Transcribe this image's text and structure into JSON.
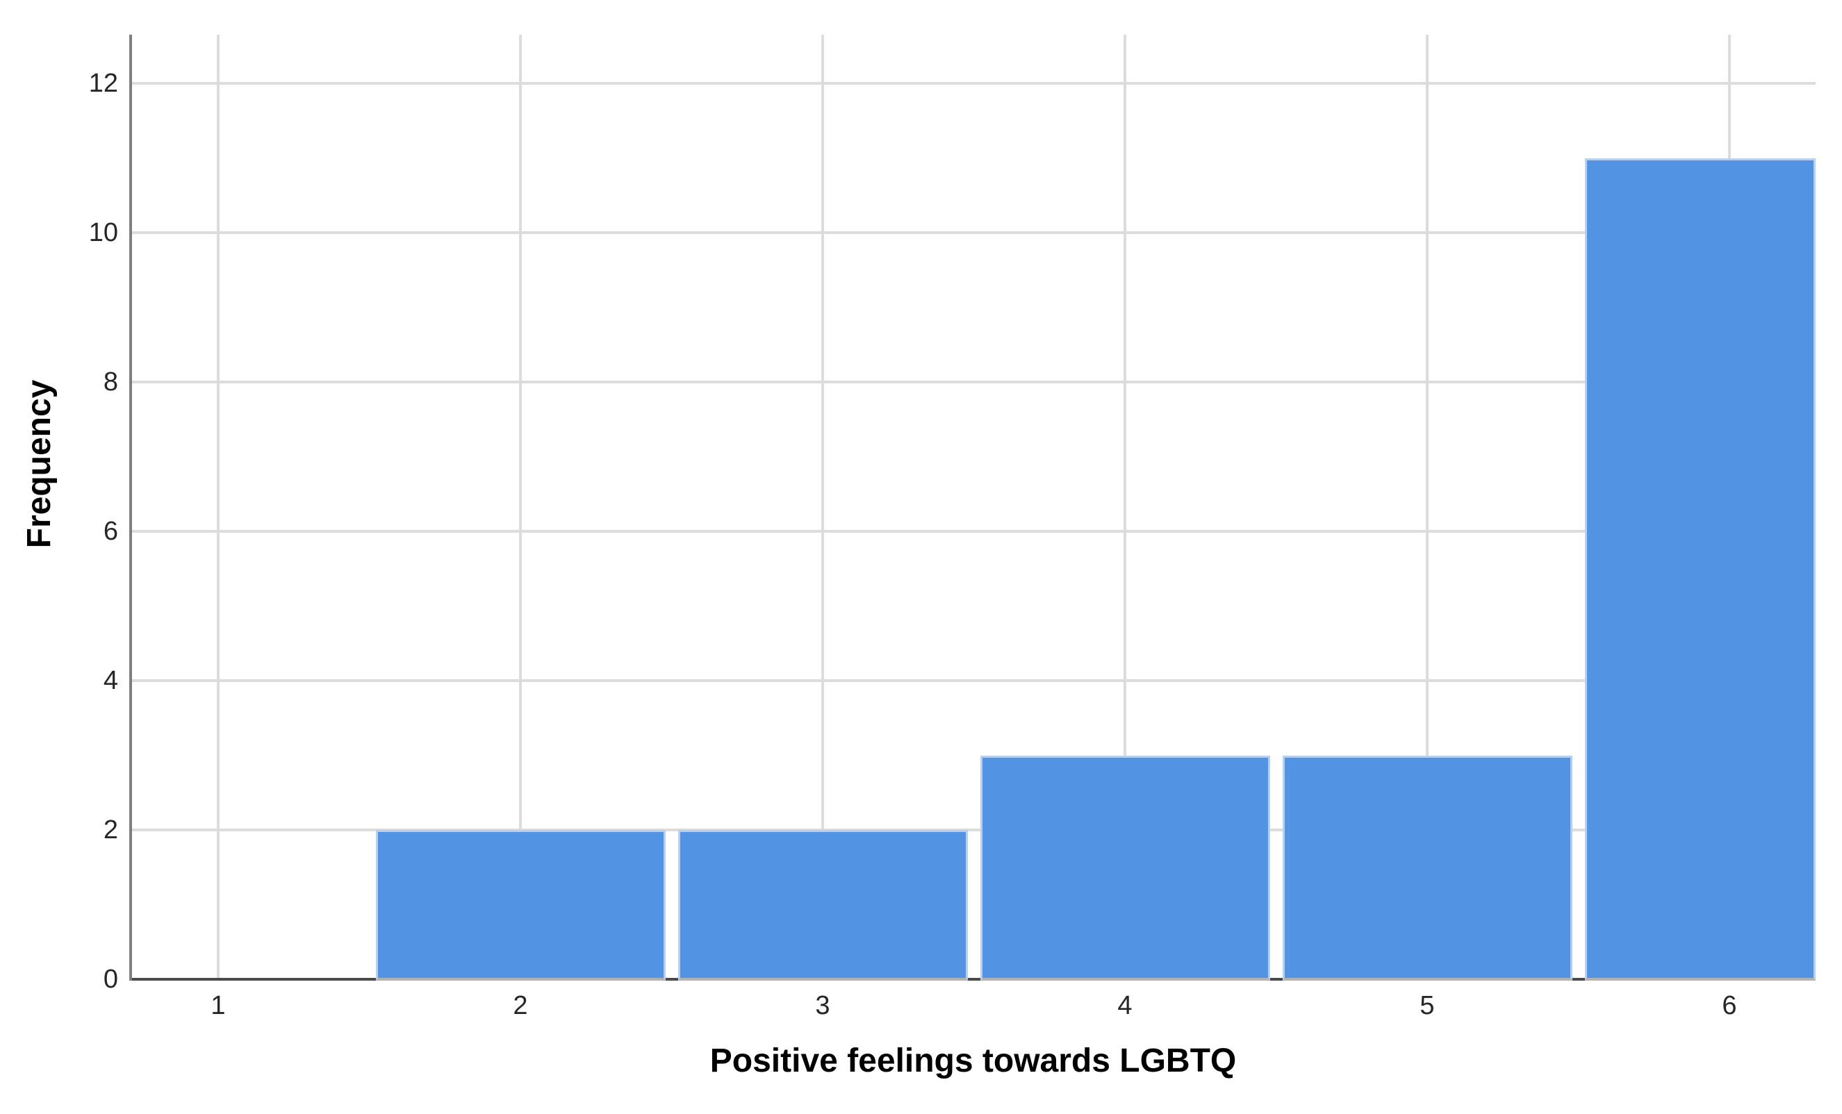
{
  "chart_data": {
    "type": "bar",
    "subtype": "histogram",
    "title": "",
    "xlabel": "Positive feelings towards LGBTQ",
    "ylabel": "Frequency",
    "categories": [
      "1",
      "2",
      "3",
      "4",
      "5",
      "6"
    ],
    "values": [
      0,
      2,
      2,
      3,
      3,
      11
    ],
    "y_ticks": [
      "0",
      "2",
      "4",
      "6",
      "8",
      "10",
      "12"
    ],
    "y_tick_values": [
      0,
      2,
      4,
      6,
      8,
      10,
      12
    ],
    "ylim": [
      0,
      12.65
    ],
    "xlim": [
      0.71,
      6.29
    ],
    "grid": "both-behind-bars",
    "legend": "none",
    "colors": {
      "bar_fill": "#5293E3",
      "bar_border": "#B7CFF2",
      "bar_base_shadow": "#B3B3B3",
      "gridline": "#DCDCDC",
      "y_axis_line": "#7F7F7F",
      "x_axis_line": "#4A4A4A",
      "tick_label": "#262626",
      "axis_title": "#000000",
      "background": "#FFFFFF"
    }
  }
}
